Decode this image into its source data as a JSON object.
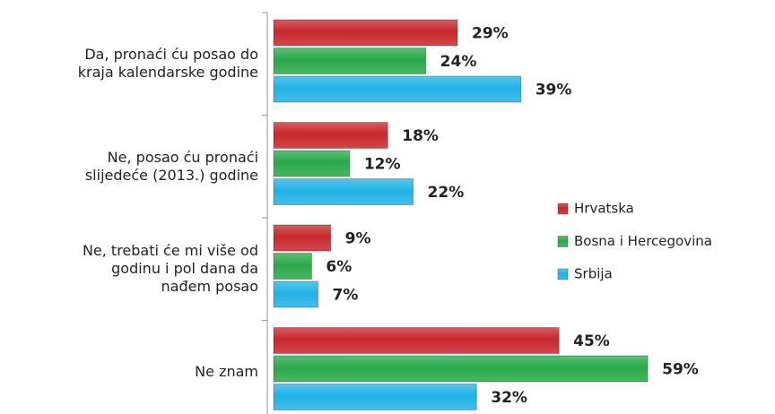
{
  "chart_data": {
    "type": "bar",
    "orientation": "horizontal",
    "categories": [
      "Da, pronaći ću posao do\nkraja kalendarske godine",
      "Ne, posao ću pronaći\nslijedeće (2013.) godine",
      "Ne, trebati će mi više od\ngodinu i pol dana da\nnađem posao",
      "Ne znam"
    ],
    "series": [
      {
        "name": "Hrvatska",
        "color": "#c8282c",
        "values": [
          29,
          18,
          9,
          45
        ],
        "value_labels": [
          "29%",
          "18%",
          "9%",
          "45%"
        ]
      },
      {
        "name": "Bosna i Hercegovina",
        "color": "#2aa84a",
        "values": [
          24,
          12,
          6,
          59
        ],
        "value_labels": [
          "24%",
          "12%",
          "6%",
          "59%"
        ]
      },
      {
        "name": "Srbija",
        "color": "#22b2e6",
        "values": [
          39,
          22,
          7,
          32
        ],
        "value_labels": [
          "39%",
          "22%",
          "7%",
          "32%"
        ]
      }
    ]
  }
}
